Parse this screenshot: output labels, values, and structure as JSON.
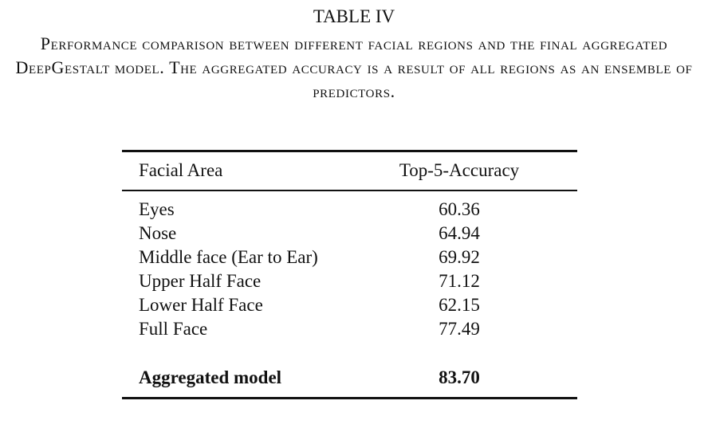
{
  "title": "TABLE IV",
  "caption": "Performance comparison between different facial regions and the final aggregated DeepGestalt model. The aggregated accuracy is a result of all regions as an ensemble of predictors.",
  "table": {
    "header": [
      "Facial Area",
      "Top-5-Accuracy"
    ],
    "rows": [
      [
        "Eyes",
        "60.36"
      ],
      [
        "Nose",
        "64.94"
      ],
      [
        "Middle face (Ear to Ear)",
        "69.92"
      ],
      [
        "Upper Half Face",
        "71.12"
      ],
      [
        "Lower Half Face",
        "62.15"
      ],
      [
        "Full Face",
        "77.49"
      ]
    ],
    "summary": [
      "Aggregated model",
      "83.70"
    ]
  }
}
